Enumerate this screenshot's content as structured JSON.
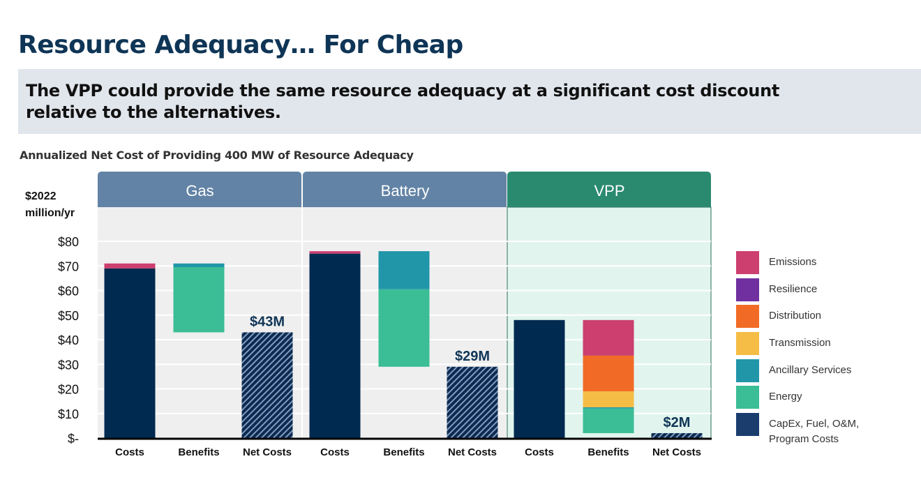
{
  "title": "Resource Adequacy… For Cheap",
  "subtitle": "The VPP could provide the same resource adequacy at a significant cost discount relative to the alternatives.",
  "chart_data": {
    "type": "bar",
    "subtype": "waterfall",
    "title": "Annualized Net Cost of Providing 400 MW of Resource Adequacy",
    "ylabel": "$2022 million/yr",
    "ylim": [
      0,
      80
    ],
    "yticks": [
      {
        "v": 0,
        "label": "$-"
      },
      {
        "v": 10,
        "label": "$10"
      },
      {
        "v": 20,
        "label": "$20"
      },
      {
        "v": 30,
        "label": "$30"
      },
      {
        "v": 40,
        "label": "$40"
      },
      {
        "v": 50,
        "label": "$50"
      },
      {
        "v": 60,
        "label": "$60"
      },
      {
        "v": 70,
        "label": "$70"
      },
      {
        "v": 80,
        "label": "$80"
      }
    ],
    "grid": true,
    "legend_placement": "right",
    "colors": {
      "Emissions": "#cc3f6f",
      "Resilience": "#7030a0",
      "Distribution": "#f26b26",
      "Transmission": "#f5bd45",
      "Ancillary Services": "#2196a8",
      "Energy": "#3bbd96",
      "CapEx, Fuel, O&M, Program Costs": "#002a50"
    },
    "legend": [
      "Emissions",
      "Resilience",
      "Distribution",
      "Transmission",
      "Ancillary Services",
      "Energy",
      "CapEx, Fuel, O&M, Program Costs"
    ],
    "groups": [
      {
        "name": "Gas",
        "header_color": "#6283a5",
        "bg": "#efefef",
        "costs": [
          {
            "series": "CapEx, Fuel, O&M, Program Costs",
            "value": 69
          },
          {
            "series": "Emissions",
            "value": 2
          }
        ],
        "benefits": [
          {
            "series": "Ancillary Services",
            "value": 1.5
          },
          {
            "series": "Energy",
            "value": 26.5
          }
        ],
        "net": 43,
        "net_label": "$43M"
      },
      {
        "name": "Battery",
        "header_color": "#6283a5",
        "bg": "#efefef",
        "costs": [
          {
            "series": "CapEx, Fuel, O&M, Program Costs",
            "value": 75
          },
          {
            "series": "Emissions",
            "value": 1
          }
        ],
        "benefits": [
          {
            "series": "Ancillary Services",
            "value": 15.5
          },
          {
            "series": "Energy",
            "value": 31.5
          }
        ],
        "net": 29,
        "net_label": "$29M"
      },
      {
        "name": "VPP",
        "header_color": "#2a8a70",
        "bg": "#e1f5ee",
        "costs": [
          {
            "series": "CapEx, Fuel, O&M, Program Costs",
            "value": 48
          }
        ],
        "benefits": [
          {
            "series": "Emissions",
            "value": 14.5
          },
          {
            "series": "Distribution",
            "value": 14.5
          },
          {
            "series": "Transmission",
            "value": 6.5
          },
          {
            "series": "Ancillary Services",
            "value": 0.5
          },
          {
            "series": "Energy",
            "value": 10
          }
        ],
        "net": 2,
        "net_label": "$2M"
      }
    ],
    "categories": [
      "Costs",
      "Benefits",
      "Net Costs"
    ]
  }
}
